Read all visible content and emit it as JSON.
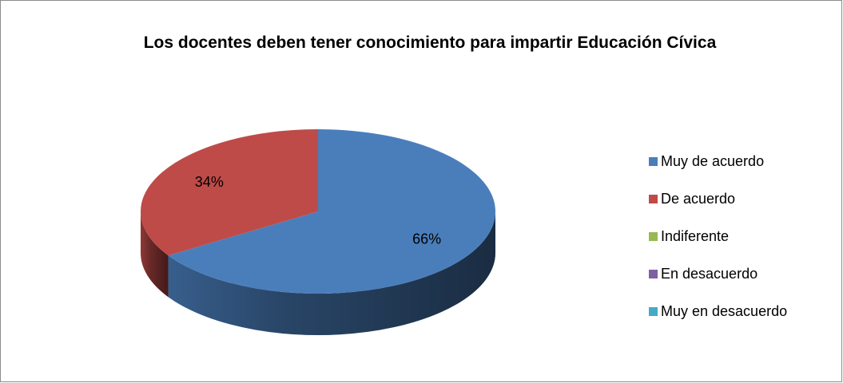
{
  "chart_data": {
    "type": "pie",
    "title": "Los docentes deben tener conocimiento para impartir Educación Cívica",
    "categories": [
      "Muy de acuerdo",
      "De acuerdo",
      "Indiferente",
      "En desacuerdo",
      "Muy en desacuerdo"
    ],
    "values": [
      66,
      34,
      0,
      0,
      0
    ],
    "value_labels": [
      "66%",
      "34%",
      null,
      null,
      null
    ],
    "colors": [
      "#4a7ebb",
      "#be4b48",
      "#98b954",
      "#7d60a0",
      "#46aac5"
    ],
    "legend": "right"
  }
}
